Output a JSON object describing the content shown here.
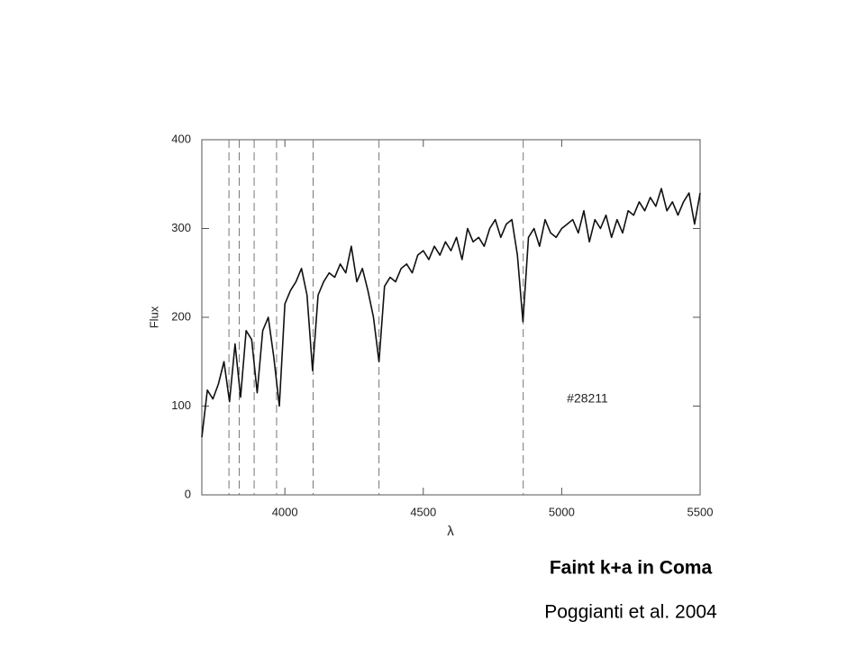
{
  "chart_data": {
    "type": "line",
    "title": "Faint k+a in Coma",
    "caption": "Poggianti et al. 2004",
    "annotation": "#28211",
    "x_label": "λ",
    "y_label": "Flux",
    "color": "#111111",
    "reference_lines": [
      3798,
      3835,
      3889,
      3970,
      4102,
      4340,
      4861
    ],
    "xlim": [
      3700,
      5500
    ],
    "xticks": [
      4000,
      4500,
      5000,
      5500
    ],
    "ylim": [
      0,
      400
    ],
    "yticks": [
      0,
      100,
      200,
      300,
      400
    ],
    "x": [
      3700,
      3720,
      3740,
      3760,
      3780,
      3800,
      3820,
      3840,
      3860,
      3880,
      3900,
      3920,
      3940,
      3960,
      3980,
      4000,
      4020,
      4040,
      4060,
      4080,
      4100,
      4120,
      4140,
      4160,
      4180,
      4200,
      4220,
      4240,
      4260,
      4280,
      4300,
      4320,
      4340,
      4360,
      4380,
      4400,
      4420,
      4440,
      4460,
      4480,
      4500,
      4520,
      4540,
      4560,
      4580,
      4600,
      4620,
      4640,
      4660,
      4680,
      4700,
      4720,
      4740,
      4760,
      4780,
      4800,
      4820,
      4840,
      4860,
      4880,
      4900,
      4920,
      4940,
      4960,
      4980,
      5000,
      5020,
      5040,
      5060,
      5080,
      5100,
      5120,
      5140,
      5160,
      5180,
      5200,
      5220,
      5240,
      5260,
      5280,
      5300,
      5320,
      5340,
      5360,
      5380,
      5400,
      5420,
      5440,
      5460,
      5480,
      5500
    ],
    "values": [
      65,
      118,
      108,
      125,
      150,
      105,
      170,
      110,
      185,
      175,
      115,
      185,
      200,
      155,
      100,
      215,
      230,
      240,
      255,
      225,
      140,
      225,
      240,
      250,
      245,
      260,
      250,
      280,
      240,
      255,
      230,
      200,
      150,
      235,
      245,
      240,
      255,
      260,
      250,
      270,
      275,
      265,
      280,
      270,
      285,
      275,
      290,
      265,
      300,
      285,
      290,
      280,
      300,
      310,
      290,
      305,
      310,
      270,
      195,
      290,
      300,
      280,
      310,
      295,
      290,
      300,
      305,
      310,
      295,
      320,
      285,
      310,
      300,
      315,
      290,
      310,
      295,
      320,
      315,
      330,
      320,
      335,
      325,
      345,
      320,
      330,
      315,
      330,
      340,
      305,
      340
    ]
  }
}
